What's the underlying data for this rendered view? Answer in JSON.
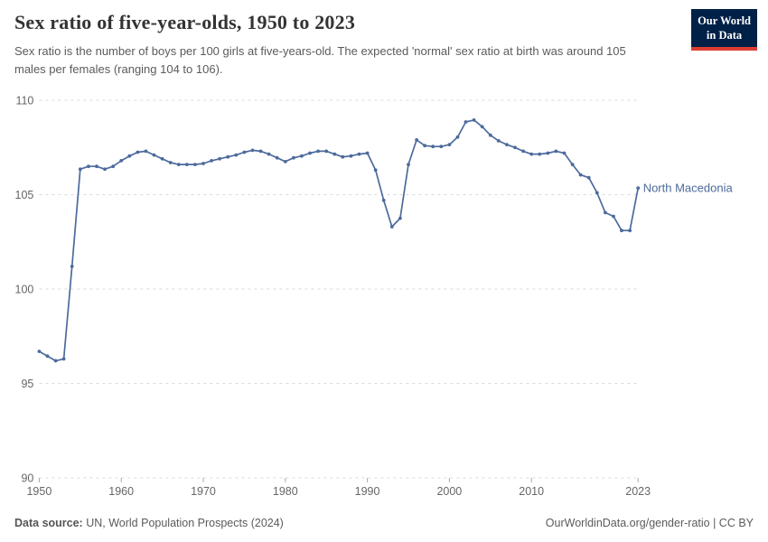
{
  "header": {
    "title": "Sex ratio of five-year-olds, 1950 to 2023",
    "subtitle": "Sex ratio is the number of boys per 100 girls at five-years-old. The expected 'normal' sex ratio at birth was around 105 males per females (ranging 104 to 106).",
    "logo": {
      "line1": "Our World",
      "line2": "in Data",
      "bg_color": "#002147",
      "accent_color": "#dc3e31"
    }
  },
  "chart_data": {
    "type": "line",
    "title": "Sex ratio of five-year-olds, 1950 to 2023",
    "xlabel": "",
    "ylabel": "",
    "xlim": [
      1950,
      2023
    ],
    "ylim": [
      90,
      110
    ],
    "grid": "horizontal-dashed",
    "legend_position": "end-of-line",
    "x_ticks": [
      1950,
      1960,
      1970,
      1980,
      1990,
      2000,
      2010,
      2023
    ],
    "y_ticks": [
      90,
      95,
      100,
      105,
      110
    ],
    "series": [
      {
        "name": "North Macedonia",
        "color": "#4c6a9c",
        "x": [
          1950,
          1951,
          1952,
          1953,
          1954,
          1955,
          1956,
          1957,
          1958,
          1959,
          1960,
          1961,
          1962,
          1963,
          1964,
          1965,
          1966,
          1967,
          1968,
          1969,
          1970,
          1971,
          1972,
          1973,
          1974,
          1975,
          1976,
          1977,
          1978,
          1979,
          1980,
          1981,
          1982,
          1983,
          1984,
          1985,
          1986,
          1987,
          1988,
          1989,
          1990,
          1991,
          1992,
          1993,
          1994,
          1995,
          1996,
          1997,
          1998,
          1999,
          2000,
          2001,
          2002,
          2003,
          2004,
          2005,
          2006,
          2007,
          2008,
          2009,
          2010,
          2011,
          2012,
          2013,
          2014,
          2015,
          2016,
          2017,
          2018,
          2019,
          2020,
          2021,
          2022,
          2023
        ],
        "values": [
          96.7,
          96.45,
          96.2,
          96.3,
          101.2,
          106.35,
          106.5,
          106.5,
          106.35,
          106.5,
          106.8,
          107.05,
          107.25,
          107.3,
          107.1,
          106.9,
          106.7,
          106.6,
          106.6,
          106.6,
          106.65,
          106.8,
          106.9,
          107.0,
          107.1,
          107.25,
          107.35,
          107.3,
          107.15,
          106.95,
          106.75,
          106.95,
          107.05,
          107.2,
          107.3,
          107.3,
          107.15,
          107.0,
          107.05,
          107.15,
          107.2,
          106.3,
          104.7,
          103.3,
          103.75,
          106.6,
          107.9,
          107.6,
          107.55,
          107.55,
          107.65,
          108.05,
          108.85,
          108.95,
          108.6,
          108.15,
          107.85,
          107.65,
          107.5,
          107.3,
          107.15,
          107.15,
          107.2,
          107.3,
          107.2,
          106.6,
          106.05,
          105.9,
          105.1,
          104.05,
          103.85,
          103.1,
          103.1,
          105.35
        ]
      }
    ],
    "colors": {
      "gridline": "#dadada",
      "tick": "#a8a8a8",
      "tick_label": "#666666"
    }
  },
  "footer": {
    "source_label": "Data source:",
    "source_value": "UN, World Population Prospects (2024)",
    "credit": "OurWorldinData.org/gender-ratio | CC BY"
  }
}
